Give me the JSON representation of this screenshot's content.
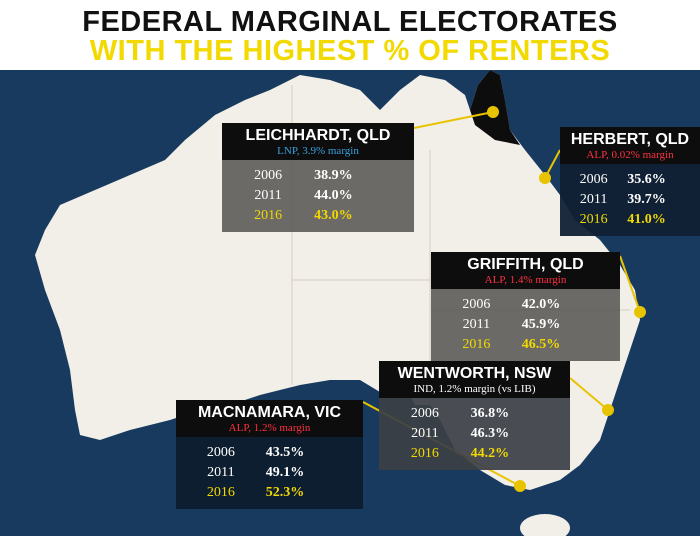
{
  "header": {
    "line1": "FEDERAL MARGINAL ELECTORATES",
    "line2": "WITH THE HIGHEST % OF RENTERS"
  },
  "boxes": [
    {
      "name": "LEICHHARDT, QLD",
      "margin": "LNP, 3.9% margin",
      "rows": [
        [
          "2006",
          "38.9%"
        ],
        [
          "2011",
          "44.0%"
        ],
        [
          "2016",
          "43.0%"
        ]
      ]
    },
    {
      "name": "HERBERT, QLD",
      "margin": "ALP, 0.02% margin",
      "rows": [
        [
          "2006",
          "35.6%"
        ],
        [
          "2011",
          "39.7%"
        ],
        [
          "2016",
          "41.0%"
        ]
      ]
    },
    {
      "name": "GRIFFITH, QLD",
      "margin": "ALP, 1.4% margin",
      "rows": [
        [
          "2006",
          "42.0%"
        ],
        [
          "2011",
          "45.9%"
        ],
        [
          "2016",
          "46.5%"
        ]
      ]
    },
    {
      "name": "WENTWORTH, NSW",
      "margin": "IND, 1.2% margin (vs LIB)",
      "rows": [
        [
          "2006",
          "36.8%"
        ],
        [
          "2011",
          "46.3%"
        ],
        [
          "2016",
          "44.2%"
        ]
      ]
    },
    {
      "name": "MACNAMARA, VIC",
      "margin": "ALP, 1.2% margin",
      "rows": [
        [
          "2006",
          "43.5%"
        ],
        [
          "2011",
          "49.1%"
        ],
        [
          "2016",
          "52.3%"
        ]
      ]
    }
  ]
}
